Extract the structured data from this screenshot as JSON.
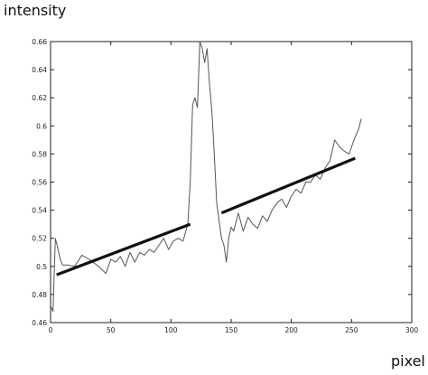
{
  "chart_data": {
    "type": "line",
    "title": "",
    "xlabel": "pixel",
    "ylabel": "intensity",
    "xlim": [
      0,
      300
    ],
    "ylim": [
      0.46,
      0.66
    ],
    "x_ticks": [
      0,
      50,
      100,
      150,
      200,
      250,
      300
    ],
    "x_tick_labels": [
      "0",
      "50",
      "100",
      "150",
      "200",
      "250",
      "300"
    ],
    "y_ticks": [
      0.46,
      0.48,
      0.5,
      0.52,
      0.54,
      0.56,
      0.58,
      0.6,
      0.62,
      0.64,
      0.66
    ],
    "y_tick_labels": [
      "0.46",
      "0.48",
      "0.5",
      "0.52",
      "0.54",
      "0.56",
      "0.58",
      "0.6",
      "0.62",
      "0.64",
      "0.66"
    ],
    "grid": false,
    "series": [
      {
        "style": "thin-noisy",
        "color": "#555555",
        "x": [
          0,
          2,
          4,
          6,
          8,
          10,
          14,
          20,
          26,
          32,
          40,
          46,
          50,
          54,
          58,
          62,
          66,
          70,
          74,
          78,
          82,
          86,
          90,
          94,
          98,
          102,
          106,
          110,
          114,
          116,
          118,
          120,
          122,
          124,
          126,
          128,
          130,
          132,
          134,
          136,
          138,
          140,
          142,
          144,
          146,
          148,
          150,
          152,
          156,
          160,
          164,
          168,
          172,
          176,
          180,
          184,
          188,
          192,
          196,
          200,
          204,
          208,
          212,
          216,
          220,
          224,
          228,
          232,
          236,
          240,
          244,
          248,
          252,
          256,
          258
        ],
        "y": [
          0.472,
          0.468,
          0.52,
          0.513,
          0.505,
          0.501,
          0.501,
          0.5,
          0.508,
          0.505,
          0.5,
          0.495,
          0.505,
          0.503,
          0.507,
          0.5,
          0.51,
          0.503,
          0.51,
          0.508,
          0.512,
          0.51,
          0.515,
          0.52,
          0.512,
          0.518,
          0.52,
          0.518,
          0.53,
          0.56,
          0.615,
          0.62,
          0.613,
          0.66,
          0.655,
          0.645,
          0.655,
          0.63,
          0.61,
          0.58,
          0.545,
          0.532,
          0.52,
          0.515,
          0.503,
          0.52,
          0.528,
          0.525,
          0.538,
          0.525,
          0.535,
          0.53,
          0.527,
          0.536,
          0.532,
          0.54,
          0.545,
          0.548,
          0.542,
          0.55,
          0.555,
          0.552,
          0.56,
          0.56,
          0.565,
          0.562,
          0.57,
          0.575,
          0.59,
          0.585,
          0.582,
          0.58,
          0.59,
          0.598,
          0.605
        ]
      },
      {
        "style": "thick-fit",
        "color": "#111111",
        "x": [
          5,
          116
        ],
        "y": [
          0.494,
          0.53
        ]
      },
      {
        "style": "thick-fit",
        "color": "#111111",
        "x": [
          142,
          253
        ],
        "y": [
          0.538,
          0.577
        ]
      }
    ]
  }
}
